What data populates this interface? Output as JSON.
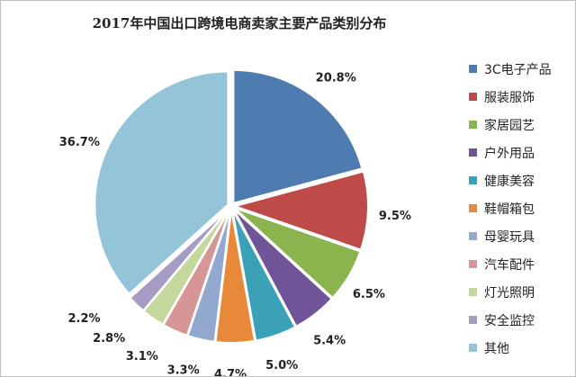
{
  "chart_data": {
    "type": "pie",
    "title": "2017年中国出口跨境电商卖家主要产品类别分布",
    "legend_position": "right",
    "slices": [
      {
        "name": "3C电子产品",
        "value": 20.8,
        "label": "20.8%",
        "color": "#4f7cb0"
      },
      {
        "name": "服装服饰",
        "value": 9.5,
        "label": "9.5%",
        "color": "#be4b48"
      },
      {
        "name": "家居园艺",
        "value": 6.5,
        "label": "6.5%",
        "color": "#8bb34e"
      },
      {
        "name": "户外用品",
        "value": 5.4,
        "label": "5.4%",
        "color": "#6f5597"
      },
      {
        "name": "健康美容",
        "value": 5.0,
        "label": "5.0%",
        "color": "#3aa1b7"
      },
      {
        "name": "鞋帽箱包",
        "value": 4.7,
        "label": "4.7%",
        "color": "#e8893a"
      },
      {
        "name": "母婴玩具",
        "value": 3.3,
        "label": "3.3%",
        "color": "#92a8ce"
      },
      {
        "name": "汽车配件",
        "value": 3.1,
        "label": "3.1%",
        "color": "#d69695"
      },
      {
        "name": "灯光照明",
        "value": 2.8,
        "label": "2.8%",
        "color": "#c4d89e"
      },
      {
        "name": "安全监控",
        "value": 2.2,
        "label": "2.2%",
        "color": "#a59bc3"
      },
      {
        "name": "其他",
        "value": 36.7,
        "label": "36.7%",
        "color": "#93c4d8"
      }
    ]
  }
}
